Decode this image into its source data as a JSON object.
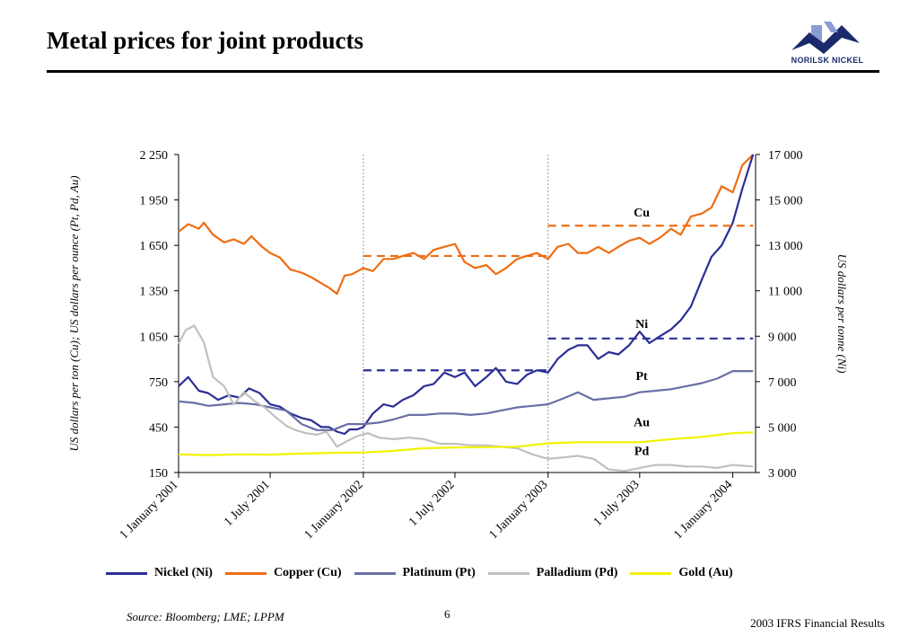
{
  "slide": {
    "title": "Metal prices for joint products",
    "logo_text": "NORILSK NICKEL",
    "source": "Source: Bloomberg; LME; LPPM",
    "page_number": "6",
    "footer": "2003 IFRS Financial Results"
  },
  "colors": {
    "nickel": "#2b2f96",
    "copper": "#ef6d12",
    "platinum": "#6a6fa6",
    "palladium": "#c0c0c0",
    "gold": "#f2f200",
    "logo": "#1a2a6c"
  },
  "icons": {
    "logo": "norilsk-logo-icon"
  },
  "chart_data": {
    "type": "line",
    "ylabel": "US dollars per ton (Cu); US dollars per ounce (Pt, Pd, Au)",
    "ylabel_right": "US dollars per tonne (Ni)",
    "ylim": [
      150,
      2250
    ],
    "ylim_right": [
      3000,
      17000
    ],
    "yticks": [
      "2 250",
      "1 950",
      "1 650",
      "1 350",
      "1 050",
      "750",
      "450",
      "150"
    ],
    "yticks_right": [
      "17 000",
      "15 000",
      "13 000",
      "11 000",
      "9 000",
      "7 000",
      "5 000",
      "3 000"
    ],
    "xlim": [
      "2001-01-01",
      "2004-02-15"
    ],
    "xticks": [
      "1 January 2001",
      "1 July 2001",
      "1 January 2002",
      "1 July 2002",
      "1 January 2003",
      "1 July 2003",
      "1 January 2004"
    ],
    "year_gridlines": [
      "2002-01-01",
      "2003-01-01"
    ],
    "legend": [
      "Nickel (Ni)",
      "Copper (Cu)",
      "Platinum (Pt)",
      "Palladium (Pd)",
      "Gold (Au)"
    ],
    "annotations": [
      {
        "text": "Cu",
        "x": "2003-07-05",
        "y": 1840
      },
      {
        "text": "Ni",
        "x": "2003-07-05",
        "y": 1105
      },
      {
        "text": "Pt",
        "x": "2003-07-05",
        "y": 760
      },
      {
        "text": "Au",
        "x": "2003-07-05",
        "y": 455
      },
      {
        "text": "Pd",
        "x": "2003-07-05",
        "y": 265
      }
    ],
    "series": [
      {
        "name": "Copper (Cu)",
        "axis": "left",
        "color": "#ef6d12",
        "x": [
          "2001-01-01",
          "2001-01-20",
          "2001-02-10",
          "2001-02-20",
          "2001-03-10",
          "2001-04-01",
          "2001-04-20",
          "2001-05-10",
          "2001-05-25",
          "2001-06-15",
          "2001-07-01",
          "2001-07-20",
          "2001-08-10",
          "2001-09-01",
          "2001-09-20",
          "2001-10-10",
          "2001-10-25",
          "2001-11-10",
          "2001-11-25",
          "2001-12-10",
          "2002-01-01",
          "2002-01-20",
          "2002-02-10",
          "2002-03-01",
          "2002-03-20",
          "2002-04-10",
          "2002-05-01",
          "2002-05-20",
          "2002-06-10",
          "2002-07-01",
          "2002-07-20",
          "2002-08-10",
          "2002-09-01",
          "2002-09-20",
          "2002-10-10",
          "2002-11-01",
          "2002-11-20",
          "2002-12-10",
          "2003-01-01",
          "2003-01-20",
          "2003-02-10",
          "2003-03-01",
          "2003-03-20",
          "2003-04-10",
          "2003-05-01",
          "2003-05-20",
          "2003-06-10",
          "2003-07-01",
          "2003-07-20",
          "2003-08-10",
          "2003-09-01",
          "2003-09-20",
          "2003-10-10",
          "2003-11-01",
          "2003-11-20",
          "2003-12-10",
          "2004-01-01",
          "2004-01-20",
          "2004-02-10"
        ],
        "values": [
          1740,
          1790,
          1760,
          1800,
          1720,
          1670,
          1690,
          1660,
          1710,
          1640,
          1600,
          1570,
          1490,
          1470,
          1440,
          1400,
          1370,
          1330,
          1450,
          1460,
          1500,
          1480,
          1560,
          1560,
          1580,
          1600,
          1560,
          1620,
          1640,
          1660,
          1540,
          1500,
          1520,
          1460,
          1500,
          1560,
          1580,
          1600,
          1560,
          1640,
          1660,
          1600,
          1600,
          1640,
          1600,
          1640,
          1680,
          1700,
          1660,
          1700,
          1760,
          1720,
          1840,
          1860,
          1900,
          2040,
          2000,
          2180,
          2250
        ]
      },
      {
        "name": "Nickel (Ni)",
        "axis": "right",
        "color": "#2b2f96",
        "x": [
          "2001-01-01",
          "2001-01-20",
          "2001-02-10",
          "2001-02-28",
          "2001-03-20",
          "2001-04-10",
          "2001-05-01",
          "2001-05-20",
          "2001-06-10",
          "2001-07-01",
          "2001-07-20",
          "2001-08-10",
          "2001-09-01",
          "2001-09-20",
          "2001-10-10",
          "2001-10-25",
          "2001-11-10",
          "2001-11-25",
          "2001-12-05",
          "2001-12-20",
          "2002-01-01",
          "2002-01-20",
          "2002-02-10",
          "2002-03-01",
          "2002-03-20",
          "2002-04-10",
          "2002-05-01",
          "2002-05-20",
          "2002-06-10",
          "2002-07-01",
          "2002-07-20",
          "2002-08-10",
          "2002-09-01",
          "2002-09-20",
          "2002-10-10",
          "2002-11-01",
          "2002-11-20",
          "2002-12-10",
          "2003-01-01",
          "2003-01-20",
          "2003-02-10",
          "2003-03-01",
          "2003-03-20",
          "2003-04-10",
          "2003-05-01",
          "2003-05-20",
          "2003-06-10",
          "2003-07-01",
          "2003-07-20",
          "2003-08-10",
          "2003-09-01",
          "2003-09-20",
          "2003-10-10",
          "2003-11-01",
          "2003-11-20",
          "2003-12-10",
          "2004-01-01",
          "2004-01-20",
          "2004-02-10"
        ],
        "values": [
          6800,
          7200,
          6600,
          6500,
          6200,
          6400,
          6300,
          6700,
          6500,
          6000,
          5900,
          5600,
          5400,
          5300,
          5000,
          5000,
          4800,
          4700,
          4900,
          4900,
          5000,
          5600,
          6000,
          5900,
          6200,
          6400,
          6800,
          6900,
          7400,
          7200,
          7400,
          6800,
          7200,
          7600,
          7000,
          6900,
          7300,
          7500,
          7400,
          8000,
          8400,
          8600,
          8600,
          8000,
          8300,
          8200,
          8600,
          9200,
          8700,
          9000,
          9300,
          9700,
          10300,
          11500,
          12500,
          13000,
          14000,
          15500,
          17000
        ]
      },
      {
        "name": "Platinum (Pt)",
        "axis": "left",
        "color": "#6a6fa6",
        "x": [
          "2001-01-01",
          "2001-02-01",
          "2001-03-01",
          "2001-04-01",
          "2001-05-01",
          "2001-06-01",
          "2001-07-01",
          "2001-08-01",
          "2001-09-01",
          "2001-10-01",
          "2001-11-01",
          "2001-12-01",
          "2002-01-01",
          "2002-02-01",
          "2002-03-01",
          "2002-04-01",
          "2002-05-01",
          "2002-06-01",
          "2002-07-01",
          "2002-08-01",
          "2002-09-01",
          "2002-10-01",
          "2002-11-01",
          "2002-12-01",
          "2003-01-01",
          "2003-02-01",
          "2003-03-01",
          "2003-04-01",
          "2003-05-01",
          "2003-06-01",
          "2003-07-01",
          "2003-08-01",
          "2003-09-01",
          "2003-10-01",
          "2003-11-01",
          "2003-12-01",
          "2004-01-01",
          "2004-02-10"
        ],
        "values": [
          620,
          610,
          590,
          600,
          610,
          600,
          580,
          560,
          470,
          430,
          430,
          470,
          470,
          480,
          500,
          530,
          530,
          540,
          540,
          530,
          540,
          560,
          580,
          590,
          600,
          640,
          680,
          630,
          640,
          650,
          680,
          690,
          700,
          720,
          740,
          770,
          820,
          820
        ]
      },
      {
        "name": "Palladium (Pd)",
        "axis": "left",
        "color": "#c0c0c0",
        "x": [
          "2001-01-01",
          "2001-01-15",
          "2001-02-01",
          "2001-02-20",
          "2001-03-10",
          "2001-04-01",
          "2001-04-20",
          "2001-05-10",
          "2001-06-01",
          "2001-06-20",
          "2001-07-10",
          "2001-08-01",
          "2001-08-20",
          "2001-09-10",
          "2001-10-01",
          "2001-10-20",
          "2001-11-10",
          "2001-12-01",
          "2001-12-20",
          "2002-01-10",
          "2002-02-01",
          "2002-03-01",
          "2002-04-01",
          "2002-05-01",
          "2002-06-01",
          "2002-07-01",
          "2002-08-01",
          "2002-09-01",
          "2002-10-01",
          "2002-11-01",
          "2002-12-01",
          "2003-01-01",
          "2003-02-01",
          "2003-03-01",
          "2003-04-01",
          "2003-05-01",
          "2003-06-01",
          "2003-07-01",
          "2003-08-01",
          "2003-09-01",
          "2003-10-01",
          "2003-11-01",
          "2003-12-01",
          "2004-01-01",
          "2004-02-10"
        ],
        "values": [
          1000,
          1090,
          1120,
          1010,
          780,
          720,
          600,
          680,
          620,
          580,
          520,
          460,
          430,
          410,
          400,
          420,
          320,
          360,
          390,
          410,
          380,
          370,
          380,
          370,
          340,
          340,
          330,
          330,
          320,
          310,
          270,
          240,
          250,
          260,
          240,
          170,
          160,
          180,
          200,
          200,
          190,
          190,
          180,
          200,
          190
        ]
      },
      {
        "name": "Gold (Au)",
        "axis": "left",
        "color": "#f2f200",
        "x": [
          "2001-01-01",
          "2001-03-01",
          "2001-05-01",
          "2001-07-01",
          "2001-09-01",
          "2001-11-01",
          "2002-01-01",
          "2002-03-01",
          "2002-05-01",
          "2002-07-01",
          "2002-09-01",
          "2002-11-01",
          "2003-01-01",
          "2003-03-01",
          "2003-05-01",
          "2003-07-01",
          "2003-09-01",
          "2003-11-01",
          "2004-01-01",
          "2004-02-10"
        ],
        "values": [
          270,
          265,
          270,
          268,
          275,
          280,
          282,
          293,
          310,
          315,
          318,
          320,
          343,
          350,
          350,
          350,
          370,
          385,
          410,
          415
        ]
      }
    ],
    "average_lines": [
      {
        "series": "Copper (Cu)",
        "axis": "left",
        "color": "#ef6d12",
        "x": [
          "2002-01-01",
          "2002-12-31"
        ],
        "y": 1580
      },
      {
        "series": "Copper (Cu)",
        "axis": "left",
        "color": "#ef6d12",
        "x": [
          "2003-01-01",
          "2004-02-10"
        ],
        "y": 1780
      },
      {
        "series": "Nickel (Ni)",
        "axis": "right",
        "color": "#2b2f96",
        "x": [
          "2002-01-01",
          "2002-12-31"
        ],
        "y": 7500
      },
      {
        "series": "Nickel (Ni)",
        "axis": "right",
        "color": "#2b2f96",
        "x": [
          "2003-01-01",
          "2004-02-10"
        ],
        "y": 8900
      }
    ]
  }
}
